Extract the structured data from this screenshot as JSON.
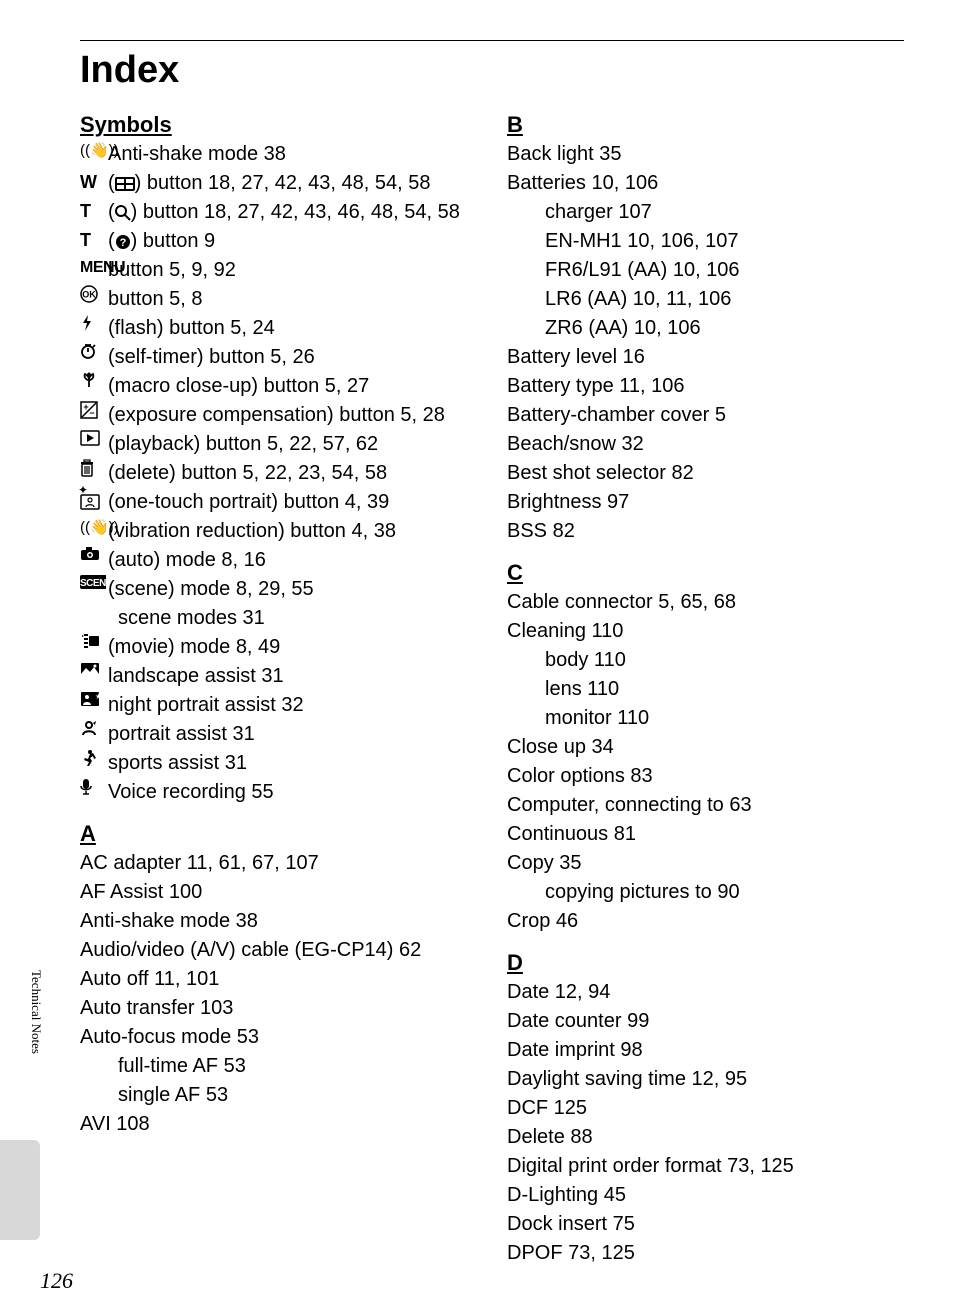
{
  "title": "Index",
  "pageNumber": "126",
  "sideLabel": "Technical Notes",
  "sections": {
    "symbols": {
      "head": "Symbols",
      "entries": [
        {
          "icon": "antishake",
          "text": " Anti-shake mode 38"
        },
        {
          "icon": "w",
          "post": " (",
          "icon2": "thumb",
          "post2": ") button 18, 27, 42, 43, 48, 54, 58"
        },
        {
          "icon": "t",
          "post": " (",
          "icon2": "magnify",
          "post2": ") button 18, 27, 42, 43, 46, 48, 54, 58"
        },
        {
          "icon": "t",
          "post": " (",
          "icon2": "help",
          "post2": ") button 9"
        },
        {
          "icon": "menu",
          "text": " button 5, 9, 92"
        },
        {
          "icon": "ok",
          "text": " button 5, 8"
        },
        {
          "icon": "flash",
          "text": " (flash) button 5, 24"
        },
        {
          "icon": "timer",
          "text": " (self-timer) button 5, 26"
        },
        {
          "icon": "macro",
          "text": " (macro close-up) button 5, 27"
        },
        {
          "icon": "expcomp",
          "text": " (exposure compensation) button 5, 28"
        },
        {
          "icon": "play",
          "text": " (playback) button 5, 22, 57, 62"
        },
        {
          "icon": "trash",
          "text": " (delete) button 5, 22, 23, 54, 58"
        },
        {
          "icon": "portrait1",
          "text": " (one-touch portrait) button 4, 39"
        },
        {
          "icon": "antishake",
          "text": " (vibration reduction) button 4, 38"
        },
        {
          "icon": "camera",
          "text": " (auto) mode 8, 16"
        },
        {
          "icon": "scene",
          "text": " (scene) mode 8, 29, 55"
        },
        {
          "sub": true,
          "text": "scene modes 31"
        },
        {
          "icon": "movie",
          "text": " (movie) mode 8, 49"
        },
        {
          "icon": "landscape",
          "text": " landscape assist 31"
        },
        {
          "icon": "nightport",
          "text": " night portrait assist 32"
        },
        {
          "icon": "portassist",
          "text": " portrait assist 31"
        },
        {
          "icon": "sports",
          "text": " sports assist 31"
        },
        {
          "icon": "mic",
          "text": " Voice recording 55"
        }
      ]
    },
    "a": {
      "head": "A",
      "entries": [
        {
          "text": "AC adapter 11, 61, 67, 107"
        },
        {
          "text": "AF Assist 100"
        },
        {
          "text": "Anti-shake mode 38"
        },
        {
          "text": "Audio/video (A/V) cable (EG-CP14) 62"
        },
        {
          "text": "Auto off 11, 101"
        },
        {
          "text": "Auto transfer 103"
        },
        {
          "text": "Auto-focus mode 53"
        },
        {
          "sub": true,
          "text": "full-time AF 53"
        },
        {
          "sub": true,
          "text": "single AF 53"
        },
        {
          "text": "AVI 108"
        }
      ]
    },
    "b": {
      "head": "B",
      "entries": [
        {
          "text": "Back light 35"
        },
        {
          "text": "Batteries 10, 106"
        },
        {
          "sub": true,
          "text": "charger 107"
        },
        {
          "sub": true,
          "text": "EN-MH1 10, 106, 107"
        },
        {
          "sub": true,
          "text": "FR6/L91 (AA) 10, 106"
        },
        {
          "sub": true,
          "text": "LR6 (AA) 10, 11, 106"
        },
        {
          "sub": true,
          "text": "ZR6 (AA) 10, 106"
        },
        {
          "text": "Battery level 16"
        },
        {
          "text": "Battery type 11, 106"
        },
        {
          "text": "Battery-chamber cover 5"
        },
        {
          "text": "Beach/snow 32"
        },
        {
          "text": "Best shot selector 82"
        },
        {
          "text": "Brightness 97"
        },
        {
          "text": "BSS 82"
        }
      ]
    },
    "c": {
      "head": "C",
      "entries": [
        {
          "text": "Cable connector 5, 65, 68"
        },
        {
          "text": "Cleaning 110"
        },
        {
          "sub": true,
          "text": "body 110"
        },
        {
          "sub": true,
          "text": "lens 110"
        },
        {
          "sub": true,
          "text": "monitor 110"
        },
        {
          "text": "Close up 34"
        },
        {
          "text": "Color options 83"
        },
        {
          "text": "Computer, connecting to 63"
        },
        {
          "text": "Continuous 81"
        },
        {
          "text": "Copy 35"
        },
        {
          "sub": true,
          "text": "copying pictures to 90"
        },
        {
          "text": "Crop 46"
        }
      ]
    },
    "d": {
      "head": "D",
      "entries": [
        {
          "text": "Date 12, 94"
        },
        {
          "text": "Date counter 99"
        },
        {
          "text": "Date imprint 98"
        },
        {
          "text": "Daylight saving time 12, 95"
        },
        {
          "text": "DCF 125"
        },
        {
          "text": "Delete 88"
        },
        {
          "text": "Digital print order format 73, 125"
        },
        {
          "text": "D-Lighting 45"
        },
        {
          "text": "Dock insert 75"
        },
        {
          "text": "DPOF 73, 125"
        }
      ]
    }
  }
}
